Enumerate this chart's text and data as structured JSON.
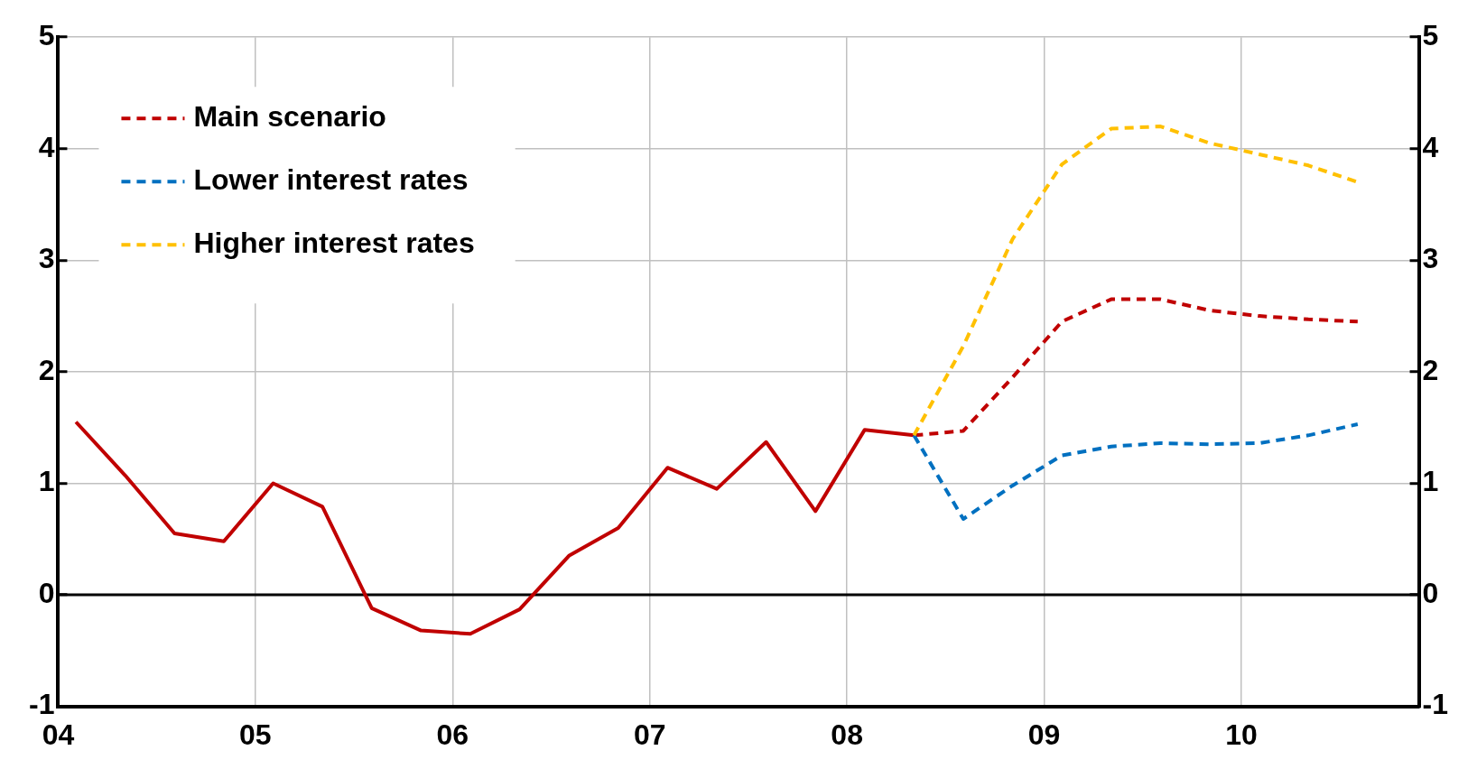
{
  "chart_data": {
    "type": "line",
    "xlim": [
      2004,
      2010.9
    ],
    "xticks": [
      {
        "value": 2004,
        "label": "04"
      },
      {
        "value": 2005,
        "label": "05"
      },
      {
        "value": 2006,
        "label": "06"
      },
      {
        "value": 2007,
        "label": "07"
      },
      {
        "value": 2008,
        "label": "08"
      },
      {
        "value": 2009,
        "label": "09"
      },
      {
        "value": 2010,
        "label": "10"
      }
    ],
    "ylim": [
      -1,
      5
    ],
    "yticks": [
      -1,
      0,
      1,
      2,
      3,
      4,
      5
    ],
    "y2lim": [
      -1,
      5
    ],
    "y2ticks": [
      -1,
      0,
      1,
      2,
      3,
      4,
      5
    ],
    "grid": true,
    "legend": "top left",
    "ref_lines": [
      {
        "axis": "y",
        "value": 0,
        "color": "#000000"
      }
    ],
    "series": [
      {
        "color": "#c00000",
        "line_style": "solid",
        "x": [
          2004.09,
          2004.34,
          2004.59,
          2004.84,
          2005.09,
          2005.34,
          2005.59,
          2005.84,
          2006.09,
          2006.34,
          2006.59,
          2006.84,
          2007.09,
          2007.34,
          2007.59,
          2007.84,
          2008.09,
          2008.34
        ],
        "values": [
          1.55,
          1.07,
          0.55,
          0.48,
          1.0,
          0.79,
          -0.12,
          -0.32,
          -0.35,
          -0.13,
          0.35,
          0.6,
          1.14,
          0.95,
          1.37,
          0.75,
          1.48,
          1.43
        ]
      },
      {
        "name": "Main scenario",
        "color": "#c00000",
        "line_style": "dashed",
        "x": [
          2008.34,
          2008.59,
          2008.84,
          2009.09,
          2009.34,
          2009.59,
          2009.84,
          2010.09,
          2010.34,
          2010.59
        ],
        "values": [
          1.43,
          1.47,
          1.95,
          2.45,
          2.65,
          2.65,
          2.55,
          2.5,
          2.47,
          2.45
        ]
      },
      {
        "name": "Lower interest rates",
        "color": "#0070c0",
        "line_style": "dashed",
        "x": [
          2008.34,
          2008.59,
          2008.84,
          2009.09,
          2009.34,
          2009.59,
          2009.84,
          2010.09,
          2010.34,
          2010.59
        ],
        "values": [
          1.43,
          0.68,
          0.98,
          1.25,
          1.33,
          1.36,
          1.35,
          1.36,
          1.43,
          1.53
        ]
      },
      {
        "name": "Higher interest rates",
        "color": "#ffc000",
        "line_style": "dashed",
        "x": [
          2008.34,
          2008.59,
          2008.84,
          2009.09,
          2009.34,
          2009.59,
          2009.84,
          2010.09,
          2010.34,
          2010.59
        ],
        "values": [
          1.43,
          2.23,
          3.19,
          3.86,
          4.18,
          4.2,
          4.05,
          3.95,
          3.85,
          3.7
        ]
      }
    ]
  }
}
